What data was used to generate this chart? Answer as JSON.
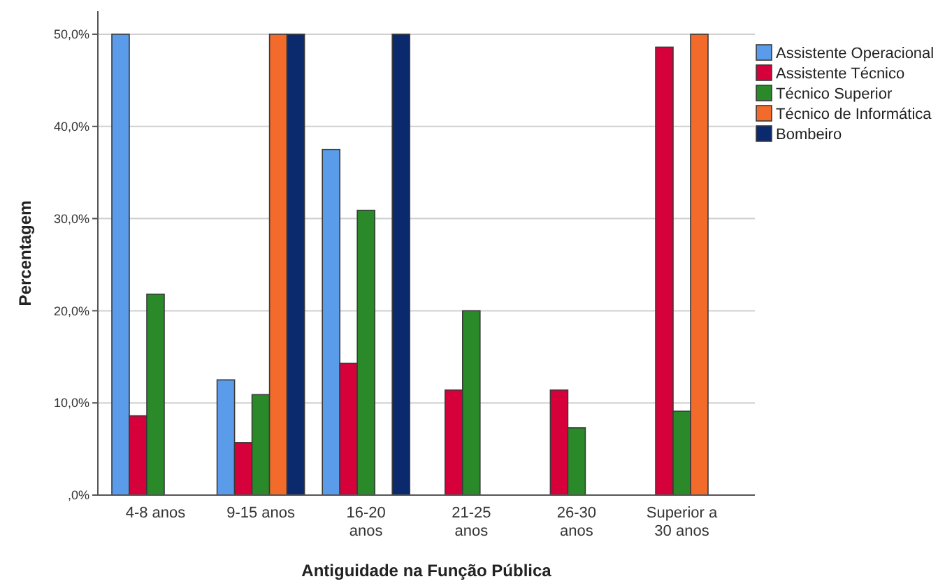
{
  "chart_data": {
    "type": "bar",
    "xlabel": "Antiguidade na Função Pública",
    "ylabel": "Percentagem",
    "categories": [
      "4-8 anos",
      "9-15 anos",
      "16-20 anos",
      "21-25 anos",
      "26-30 anos",
      "Superior a 30 anos"
    ],
    "series": [
      {
        "name": "Assistente Operacional",
        "color": "#5a9bea",
        "values": [
          50,
          12.5,
          37.5,
          0,
          0,
          0
        ]
      },
      {
        "name": "Assistente Técnico",
        "color": "#d6003a",
        "values": [
          8.6,
          5.7,
          14.3,
          11.4,
          11.4,
          48.6
        ]
      },
      {
        "name": "Técnico Superior",
        "color": "#2a8a2a",
        "values": [
          21.8,
          10.9,
          30.9,
          20.0,
          7.3,
          9.1
        ]
      },
      {
        "name": "Técnico de Informática",
        "color": "#f26b2a",
        "values": [
          0,
          50,
          0,
          0,
          0,
          50
        ]
      },
      {
        "name": "Bombeiro",
        "color": "#0b2a6e",
        "values": [
          0,
          50,
          50,
          0,
          0,
          0
        ]
      }
    ],
    "ylim": [
      0,
      52.5
    ],
    "yticks": [
      {
        "value": 0,
        "label": ",0%"
      },
      {
        "value": 10,
        "label": "10,0%"
      },
      {
        "value": 20,
        "label": "20,0%"
      },
      {
        "value": 30,
        "label": "30,0%"
      },
      {
        "value": 40,
        "label": "40,0%"
      },
      {
        "value": 50,
        "label": "50,0%"
      }
    ],
    "grid": "y",
    "legend": "right"
  }
}
